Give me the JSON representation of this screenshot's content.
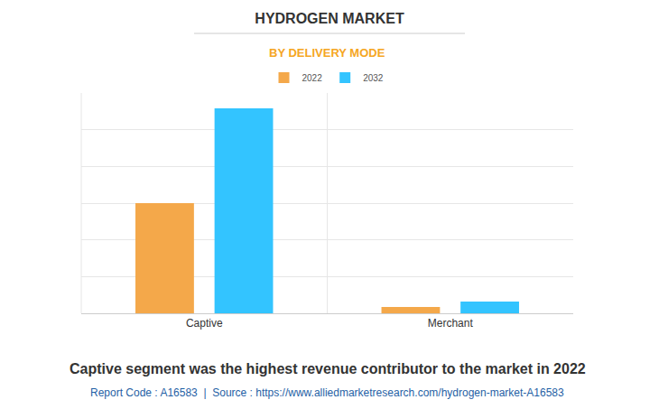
{
  "chart_data": {
    "type": "bar",
    "title": "HYDROGEN MARKET",
    "subtitle": "BY DELIVERY MODE",
    "categories": [
      "Captive",
      "Merchant"
    ],
    "series": [
      {
        "name": "2022",
        "color": "#f4a84a",
        "values": [
          3.0,
          0.17
        ]
      },
      {
        "name": "2032",
        "color": "#33c4ff",
        "values": [
          5.58,
          0.32
        ]
      }
    ],
    "ylim": [
      0,
      6
    ],
    "yticks": [
      0,
      1,
      2,
      3,
      4,
      5,
      6
    ],
    "grid": true,
    "legend": "top",
    "tick_labels": "x",
    "annotations": [
      "Captive segment was the highest revenue contributor to the market in 2022",
      "Report Code : A16583  |  Source : https://www.alliedmarketresearch.com/hydrogen-market-A16583"
    ]
  }
}
